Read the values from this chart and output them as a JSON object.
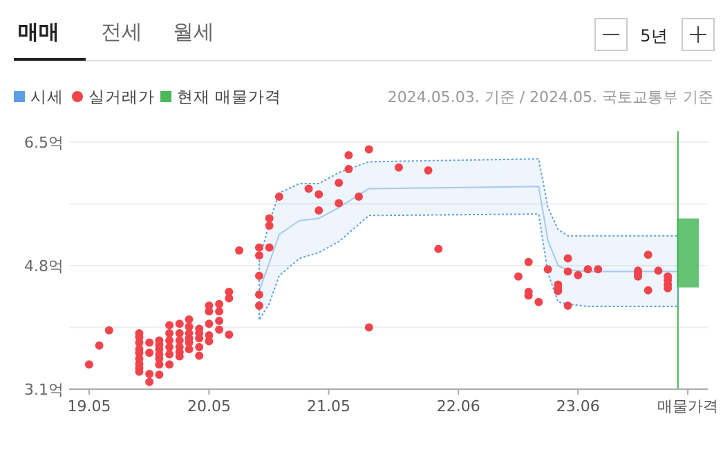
{
  "chart_data": {
    "type": "scatter",
    "xlim": [
      "2019-03",
      "2024-07"
    ],
    "xticks": [
      {
        "value": "2019-05",
        "label": "19.05"
      },
      {
        "value": "2020-05",
        "label": "20.05"
      },
      {
        "value": "2021-05",
        "label": "21.05"
      },
      {
        "value": "2022-06",
        "label": "22.06"
      },
      {
        "value": "2023-06",
        "label": "23.06"
      },
      {
        "value": "2024-05",
        "label": "매물가격"
      }
    ],
    "ylim": [
      3.1,
      6.5
    ],
    "yticks": [
      {
        "value": 3.1,
        "label": "3.1억"
      },
      {
        "value": 3.95,
        "label": null
      },
      {
        "value": 4.8,
        "label": "4.8억"
      },
      {
        "value": 5.65,
        "label": null
      },
      {
        "value": 6.5,
        "label": "6.5억"
      }
    ],
    "grid": "y",
    "legend": "top left",
    "marker": "circle",
    "annotations": [
      "매매",
      "전세",
      "월세",
      "5년",
      "2024.05.03. 기준 / 2024.05. 국토교통부 기준"
    ],
    "ref_lines": [
      {
        "axis": "x",
        "value": "2024-04",
        "color": "#4cb05a"
      }
    ],
    "series": [
      {
        "name": "시세",
        "type": "line",
        "color": "#5b9ee6",
        "marker": "none",
        "x": [
          "2020-10",
          "2020-11",
          "2020-12",
          "2021-02",
          "2021-04",
          "2021-06",
          "2021-09",
          "2023-02",
          "2023-03",
          "2023-04",
          "2023-05",
          "2023-07",
          "2024-04"
        ],
        "values": [
          4.45,
          4.84,
          5.23,
          5.42,
          5.45,
          5.6,
          5.86,
          5.89,
          5.15,
          4.8,
          4.74,
          4.72,
          4.72
        ],
        "lower": [
          4.05,
          4.28,
          4.66,
          4.9,
          4.98,
          5.13,
          5.49,
          5.51,
          4.7,
          4.3,
          4.27,
          4.24,
          4.24
        ],
        "upper": [
          4.85,
          5.4,
          5.8,
          5.93,
          5.93,
          6.08,
          6.23,
          6.27,
          5.6,
          5.3,
          5.21,
          5.21,
          5.21
        ]
      },
      {
        "name": "실거래가",
        "color": "#f0444c",
        "x": [
          "2019-05",
          "2019-06",
          "2019-07",
          "2019-10",
          "2019-10",
          "2019-10",
          "2019-10",
          "2019-10",
          "2019-10",
          "2019-10",
          "2019-10",
          "2019-10",
          "2019-11",
          "2019-11",
          "2019-11",
          "2019-11",
          "2019-12",
          "2019-12",
          "2019-12",
          "2019-12",
          "2019-12",
          "2019-12",
          "2019-12",
          "2020-01",
          "2020-01",
          "2020-01",
          "2020-01",
          "2020-01",
          "2020-01",
          "2020-02",
          "2020-02",
          "2020-02",
          "2020-02",
          "2020-02",
          "2020-02",
          "2020-03",
          "2020-03",
          "2020-03",
          "2020-03",
          "2020-03",
          "2020-03",
          "2020-04",
          "2020-04",
          "2020-04",
          "2020-04",
          "2020-04",
          "2020-05",
          "2020-05",
          "2020-05",
          "2020-05",
          "2020-05",
          "2020-06",
          "2020-06",
          "2020-06",
          "2020-06",
          "2020-07",
          "2020-07",
          "2020-07",
          "2020-08",
          "2020-10",
          "2020-10",
          "2020-10",
          "2020-10",
          "2020-10",
          "2020-11",
          "2020-11",
          "2020-11",
          "2020-12",
          "2021-03",
          "2021-04",
          "2021-04",
          "2021-06",
          "2021-06",
          "2021-07",
          "2021-07",
          "2021-08",
          "2021-09",
          "2021-09",
          "2021-12",
          "2022-03",
          "2022-04",
          "2022-12",
          "2023-01",
          "2023-01",
          "2023-01",
          "2023-02",
          "2023-03",
          "2023-04",
          "2023-04",
          "2023-04",
          "2023-05",
          "2023-05",
          "2023-05",
          "2023-06",
          "2023-07",
          "2023-08",
          "2023-12",
          "2023-12",
          "2023-12",
          "2024-01",
          "2024-01",
          "2024-02",
          "2024-03",
          "2024-03",
          "2024-03",
          "2024-03"
        ],
        "values": [
          3.44,
          3.7,
          3.91,
          3.87,
          3.82,
          3.74,
          3.65,
          3.6,
          3.52,
          3.45,
          3.39,
          3.34,
          3.74,
          3.6,
          3.31,
          3.2,
          3.77,
          3.71,
          3.65,
          3.58,
          3.52,
          3.44,
          3.3,
          3.98,
          3.87,
          3.77,
          3.68,
          3.58,
          3.44,
          4.0,
          3.87,
          3.77,
          3.68,
          3.61,
          3.55,
          4.06,
          3.96,
          3.87,
          3.8,
          3.74,
          3.65,
          3.93,
          3.87,
          3.8,
          3.68,
          3.56,
          4.25,
          4.17,
          4.0,
          3.84,
          3.76,
          4.27,
          4.17,
          4.04,
          3.92,
          4.44,
          4.35,
          3.85,
          5.01,
          5.05,
          4.94,
          4.66,
          4.4,
          4.25,
          5.45,
          5.35,
          5.05,
          5.75,
          5.86,
          5.78,
          5.56,
          5.94,
          5.66,
          6.32,
          6.13,
          5.75,
          6.4,
          3.95,
          6.15,
          6.11,
          5.03,
          4.65,
          4.85,
          4.44,
          4.39,
          4.3,
          4.75,
          4.54,
          4.49,
          4.45,
          4.9,
          4.72,
          4.25,
          4.67,
          4.75,
          4.75,
          4.73,
          4.69,
          4.65,
          4.95,
          4.46,
          4.73,
          4.65,
          4.6,
          4.54,
          4.49
        ]
      },
      {
        "name": "현재 매물가격",
        "type": "bar",
        "color": "#4cb85c",
        "x": [
          "2024-05"
        ],
        "base": [
          4.5
        ],
        "values": [
          0.95
        ]
      }
    ]
  }
}
